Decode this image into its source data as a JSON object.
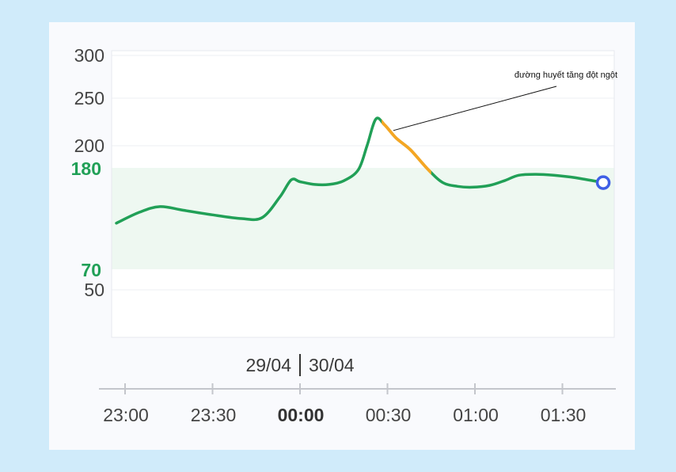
{
  "chart_data": {
    "type": "line",
    "title": "",
    "xlabel": "",
    "ylabel": "",
    "x_ticks": [
      "23:00",
      "23:30",
      "00:00",
      "00:30",
      "01:00",
      "01:30"
    ],
    "y_ticks": [
      50,
      200,
      250,
      300
    ],
    "ylim": [
      0,
      300
    ],
    "target_range": {
      "low": 70,
      "high": 180,
      "labels": [
        "70",
        "180"
      ],
      "color": "#21a057"
    },
    "date_labels": {
      "before": "29/04",
      "after": "30/04"
    },
    "series": [
      {
        "color": "#21a057",
        "highlight_color": "#f5a623",
        "x": [
          "22:57",
          "23:05",
          "23:12",
          "23:20",
          "23:30",
          "23:40",
          "23:47",
          "23:53",
          "23:57",
          "00:00",
          "00:05",
          "00:10",
          "00:15",
          "00:20",
          "00:23",
          "00:26",
          "00:29",
          "00:33",
          "00:38",
          "00:44",
          "00:49",
          "00:54",
          "00:59",
          "01:05",
          "01:10",
          "01:15",
          "01:21",
          "01:27",
          "01:33",
          "01:37",
          "01:44"
        ],
        "y": [
          120,
          132,
          138,
          134,
          129,
          125,
          126,
          148,
          167,
          165,
          162,
          162,
          166,
          178,
          200,
          228,
          222,
          208,
          196,
          178,
          164,
          160,
          159,
          161,
          166,
          172,
          173,
          172,
          170,
          168,
          164
        ],
        "highlight_range": [
          "00:28",
          "00:45"
        ],
        "end_marker": true
      }
    ],
    "annotations": [
      {
        "text": "đường huyết tăng đột ngột",
        "x": "00:32",
        "y": 216
      }
    ],
    "grid": true,
    "legend": "none"
  }
}
